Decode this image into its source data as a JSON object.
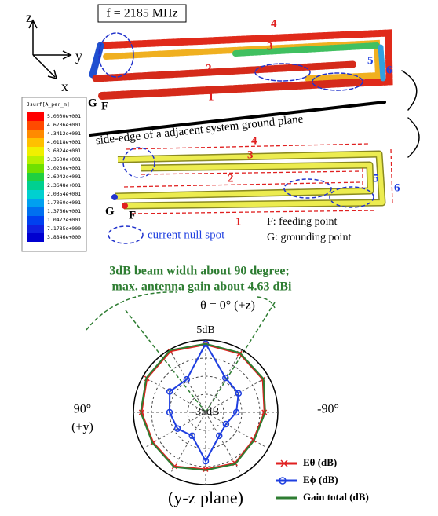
{
  "top": {
    "frequency": "f = 2185 MHz",
    "axes": {
      "z": "z",
      "y": "y",
      "x": "x"
    },
    "colorbar": {
      "title": "Jsurf[A_per_m]",
      "labels": [
        "5.0000e+001",
        "4.6706e+001",
        "4.3412e+001",
        "4.0118e+001",
        "3.6824e+001",
        "3.3530e+001",
        "3.0236e+001",
        "2.6942e+001",
        "2.3648e+001",
        "2.0354e+001",
        "1.7060e+001",
        "1.3766e+001",
        "1.0472e+001",
        "7.1785e+000",
        "3.8846e+000"
      ]
    },
    "branch_labels": [
      "1",
      "2",
      "3",
      "4",
      "5",
      "6"
    ],
    "ground": "G",
    "feed": "F",
    "caption": "side-edge of a adjacent system ground plane"
  },
  "schematic": {
    "branch_labels": [
      "1",
      "2",
      "3",
      "4",
      "5",
      "6"
    ],
    "ground": "G",
    "feed": "F",
    "legend": {
      "feed": "F: feeding point",
      "ground": "G: grounding point",
      "null": "current null spot"
    }
  },
  "chart_data": {
    "type": "polar",
    "annotation": [
      "3dB beam width about 90 degree;",
      "max. antenna gain about 4.63 dBi"
    ],
    "angle_labels": {
      "top": "θ = 0° (+z)",
      "left": "90°",
      "left_sub": "(+y)",
      "right": "-90°"
    },
    "theta": [
      0,
      30,
      60,
      90,
      120,
      150,
      180,
      210,
      240,
      270,
      300,
      330
    ],
    "series": [
      {
        "name": "Eθ (dB)",
        "color": "#e02020",
        "values": [
          2.5,
          4,
          2.5,
          0.5,
          -1.5,
          -0.5,
          -3.5,
          -2.5,
          -4.5,
          -2.5,
          1.5,
          2.5
        ]
      },
      {
        "name": "Eϕ (dB)",
        "color": "#1f3fe0",
        "values": [
          3,
          -14,
          -12,
          -15,
          -17,
          -20,
          -8,
          -20,
          -22,
          -18,
          -14,
          -13
        ]
      },
      {
        "name": "Gain total (dB)",
        "color": "#2e7d32",
        "values": [
          3,
          4.63,
          3,
          1,
          -1,
          0,
          -3,
          -2,
          -4,
          -2,
          2,
          3
        ]
      }
    ],
    "rlim": [
      -35,
      5
    ],
    "rticks": [
      {
        "value": -35,
        "label": "-35dB"
      },
      {
        "value": 5,
        "label": "5dB"
      }
    ],
    "rgrid": [
      -25,
      -15,
      -5
    ],
    "xlabel": "(y-z plane)"
  }
}
